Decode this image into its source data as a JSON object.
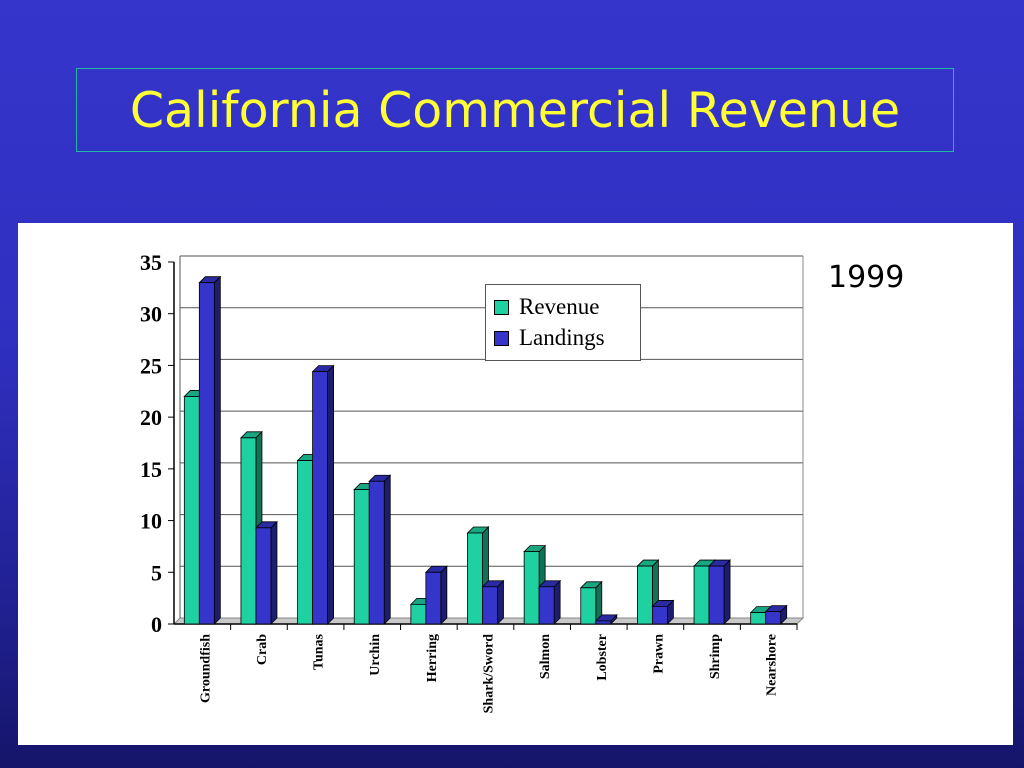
{
  "title": "California Commercial Revenue",
  "annotation": "1999",
  "colors": {
    "revenue": "#1fd0a0",
    "landings": "#3535cc"
  },
  "legend": [
    {
      "label": "Revenue",
      "color": "#1fd0a0"
    },
    {
      "label": "Landings",
      "color": "#3535cc"
    }
  ],
  "chart_data": {
    "type": "bar",
    "title": "California Commercial Revenue",
    "categories": [
      "Groundfish",
      "Crab",
      "Tunas",
      "Urchin",
      "Herring",
      "Shark/Sword",
      "Salmon",
      "Lobster",
      "Prawn",
      "Shrimp",
      "Nearshore"
    ],
    "series": [
      {
        "name": "Revenue",
        "values": [
          22,
          18,
          15.8,
          13,
          1.9,
          8.8,
          7,
          3.5,
          5.6,
          5.6,
          1.1
        ]
      },
      {
        "name": "Landings",
        "values": [
          33,
          9.3,
          24.4,
          13.8,
          5,
          3.6,
          3.6,
          0.3,
          1.7,
          5.6,
          1.2
        ]
      }
    ],
    "ylim": [
      0,
      35
    ],
    "yticks": [
      "0",
      "5",
      "10",
      "15",
      "20",
      "25",
      "30",
      "35"
    ],
    "grid": true,
    "legend_position": "top-center",
    "annotations": [
      "1999"
    ]
  }
}
